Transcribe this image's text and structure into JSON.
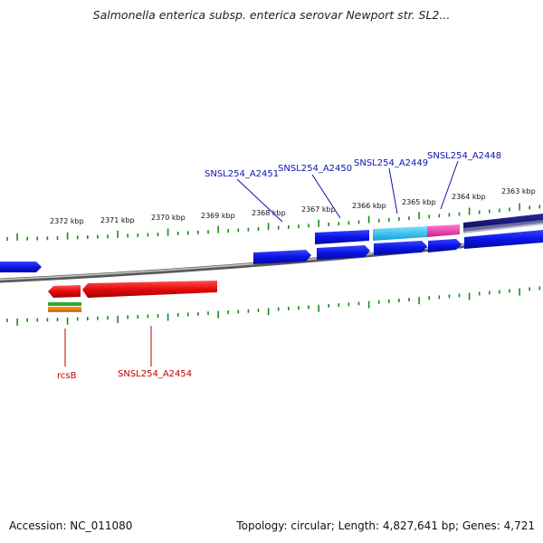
{
  "title": "Salmonella enterica subsp. enterica serovar Newport str. SL2...",
  "footer": {
    "accession": "Accession: NC_011080",
    "summary": "Topology: circular; Length: 4,827,641 bp; Genes: 4,721"
  },
  "scale_labels": [
    "2372 kbp",
    "2371 kbp",
    "2370 kbp",
    "2369 kbp",
    "2368 kbp",
    "2367 kbp",
    "2366 kbp",
    "2365 kbp",
    "2364 kbp",
    "2363 kbp"
  ],
  "gene_labels_top": [
    "SNSL254_A2451",
    "SNSL254_A2450",
    "SNSL254_A2449",
    "SNSL254_A2448"
  ],
  "gene_labels_bottom": [
    "rcsB",
    "SNSL254_A2454"
  ],
  "colors": {
    "forward_gene": "#0a14e6",
    "reverse_gene": "#e60a0a",
    "label_top": "#1010b0",
    "label_bottom": "#c00000",
    "tick": "#1a8a1a",
    "backbone": "#8c8c8c",
    "cyan_gene": "#20c0f0",
    "pink_gene": "#f03cb4",
    "navy_gene": "#10106e"
  }
}
